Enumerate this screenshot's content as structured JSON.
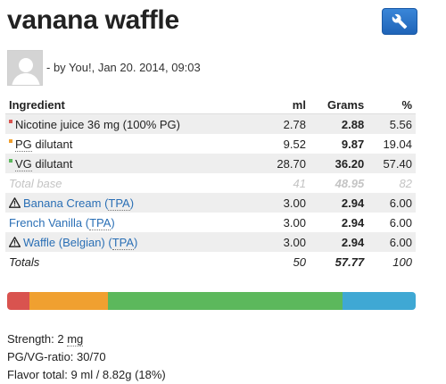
{
  "recipe": {
    "title": "vanana waffle",
    "byline": "- by You!, Jan 20. 2014, 09:03"
  },
  "table": {
    "headers": {
      "ingredient": "Ingredient",
      "ml": "ml",
      "grams": "Grams",
      "percent": "%"
    },
    "base_rows": [
      {
        "name": "Nicotine juice 36 mg (100% PG)",
        "ml": "2.78",
        "grams": "2.88",
        "percent": "5.56",
        "color": "#d9534f"
      },
      {
        "prefix": "",
        "abbr": "PG",
        "suffix": " dilutant",
        "ml": "9.52",
        "grams": "9.87",
        "percent": "19.04",
        "color": "#f0a030"
      },
      {
        "prefix": "",
        "abbr": "VG",
        "suffix": " dilutant",
        "ml": "28.70",
        "grams": "36.20",
        "percent": "57.40",
        "color": "#5cb85c"
      }
    ],
    "total_base": {
      "label": "Total base",
      "ml": "41",
      "grams": "48.95",
      "percent": "82"
    },
    "flavors": [
      {
        "name": "Banana Cream",
        "supplier": "TPA",
        "ml": "3.00",
        "grams": "2.94",
        "percent": "6.00",
        "warning": true
      },
      {
        "name": "French Vanilla",
        "supplier": "TPA",
        "ml": "3.00",
        "grams": "2.94",
        "percent": "6.00",
        "warning": false
      },
      {
        "name": "Waffle (Belgian)",
        "supplier": "TPA",
        "ml": "3.00",
        "grams": "2.94",
        "percent": "6.00",
        "warning": true
      }
    ],
    "totals": {
      "label": "Totals",
      "ml": "50",
      "grams": "57.77",
      "percent": "100"
    }
  },
  "composition_bar": [
    {
      "segment": "nicotine",
      "percent": 5.56,
      "color": "#d9534f"
    },
    {
      "segment": "pg",
      "percent": 19.04,
      "color": "#f0a030"
    },
    {
      "segment": "vg",
      "percent": 57.4,
      "color": "#5cb85c"
    },
    {
      "segment": "flavor",
      "percent": 18.0,
      "color": "#3fa8d4"
    }
  ],
  "stats": {
    "strength_label": "Strength: 2 ",
    "strength_unit": "mg",
    "ratio": "PG/VG-ratio: 30/70",
    "flavor_total": "Flavor total: 9 ml / 8.82g (18%)"
  }
}
